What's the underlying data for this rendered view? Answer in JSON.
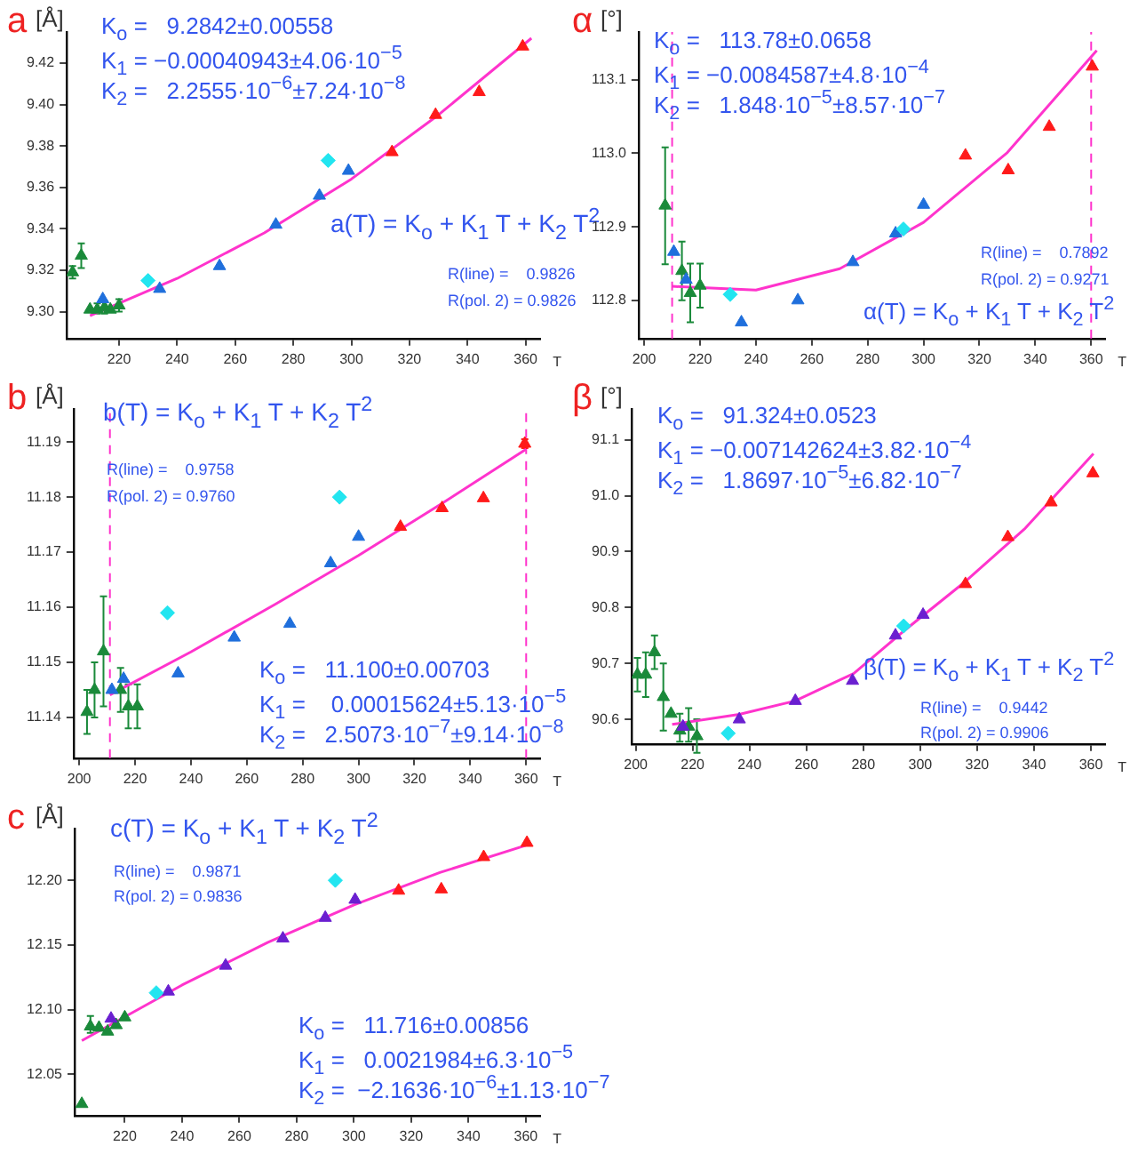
{
  "chart_data": [
    {
      "type": "scatter",
      "title": "a",
      "ylabel": "[Å]",
      "xlabel": "T",
      "xlim": [
        202,
        365
      ],
      "xticks": [
        220,
        240,
        260,
        280,
        300,
        320,
        340,
        360
      ],
      "ylim": [
        9.287,
        9.435
      ],
      "yticks": [
        {
          "value": 9.3,
          "label": "9.30"
        },
        {
          "value": 9.32,
          "label": "9.32"
        },
        {
          "value": 9.34,
          "label": "9.34"
        },
        {
          "value": 9.36,
          "label": "9.36"
        },
        {
          "value": 9.38,
          "label": "9.38"
        },
        {
          "value": 9.4,
          "label": "9.40"
        },
        {
          "value": 9.42,
          "label": "9.42"
        }
      ],
      "annotations": [
        "K$_{o}$ =   9.2842±0.00558",
        "K$_{1}$ = −0.00040943±4.06·10$^{−5}$",
        "K$_{2}$ =   2.2555·10$^{−6}$±7.24·10$^{−8}$",
        "a(T) = K$_{o}$ + K$_{1}$ T + K$_{2}$ T$^{2}$",
        "R(line) =    0.9826",
        "R(pol. 2) = 0.9826"
      ],
      "series": [
        {
          "type": "line",
          "color": "#ff33cc",
          "marker": "none",
          "x": [
            210,
            240,
            270,
            300,
            330,
            362
          ],
          "values": [
            9.298,
            9.316,
            9.338,
            9.364,
            9.395,
            9.432
          ]
        },
        {
          "type": "scatter",
          "color": "#1a8a3a",
          "marker": "triangle",
          "x": [
            204,
            207,
            210,
            212.5,
            215,
            217,
            220
          ],
          "values": [
            9.319,
            9.327,
            9.301,
            9.301,
            9.302,
            9.301,
            9.303
          ],
          "errors": [
            [
              9.316,
              9.322
            ],
            [
              9.321,
              9.333
            ],
            null,
            [
              9.299,
              9.304
            ],
            [
              9.299,
              9.305
            ],
            null,
            [
              9.3,
              9.306
            ]
          ]
        },
        {
          "type": "scatter",
          "color": "#1f6fdc",
          "marker": "triangle",
          "x": [
            214.4,
            234,
            254.6,
            274,
            289,
            299
          ],
          "values": [
            9.306,
            9.311,
            9.322,
            9.342,
            9.356,
            9.368
          ]
        },
        {
          "type": "scatter",
          "color": "#22e5f0",
          "marker": "diamond",
          "x": [
            230,
            292
          ],
          "values": [
            9.315,
            9.373
          ]
        },
        {
          "type": "scatter",
          "color": "#ff1a1a",
          "marker": "triangle",
          "x": [
            314,
            329,
            344,
            359
          ],
          "values": [
            9.377,
            9.395,
            9.406,
            9.428
          ]
        }
      ]
    },
    {
      "type": "scatter",
      "title": "α",
      "ylabel": "[°]",
      "xlabel": "T",
      "xlim": [
        198,
        365
      ],
      "xticks": [
        200,
        220,
        240,
        260,
        280,
        300,
        320,
        340,
        360
      ],
      "ylim": [
        112.748,
        113.165
      ],
      "yticks": [
        112.8,
        112.9,
        {
          "value": 113,
          "label": "113.0"
        },
        113.1
      ],
      "annotations": [
        "K$_{o}$ =   113.78±0.0658",
        "K$_{1}$ = −0.0084587±4.8·10$^{−4}$",
        "K$_{2}$ =   1.848·10$^{−5}$±8.57·10$^{−7}$",
        "R(line) =    0.7892",
        "R(pol. 2) = 0.9271",
        "α(T) = K$_{o}$ + K$_{1}$ T + K$_{2}$ T$^{2}$"
      ],
      "ref_lines": [
        {
          "axis": "x",
          "value": 210,
          "color": "#ff33cc",
          "line_style": "dashed"
        },
        {
          "axis": "x",
          "value": 360,
          "color": "#ff33cc",
          "line_style": "dashed"
        }
      ],
      "series": [
        {
          "type": "line",
          "color": "#ff33cc",
          "marker": "none",
          "x": [
            210,
            240,
            270,
            300,
            330,
            362
          ],
          "values": [
            112.819,
            112.814,
            112.843,
            112.906,
            113.001,
            113.14
          ]
        },
        {
          "type": "scatter",
          "color": "#1a8a3a",
          "marker": "triangle",
          "x": [
            207.5,
            213.5,
            216.5,
            220
          ],
          "values": [
            112.929,
            112.84,
            112.81,
            112.82
          ],
          "errors": [
            [
              112.849,
              113.008
            ],
            [
              112.8,
              112.88
            ],
            [
              112.77,
              112.85
            ],
            [
              112.79,
              112.85
            ]
          ]
        },
        {
          "type": "scatter",
          "color": "#1f6fdc",
          "marker": "triangle",
          "x": [
            210.6,
            215,
            234.8,
            255,
            274.7,
            290,
            300
          ],
          "values": [
            112.866,
            112.828,
            112.77,
            112.8,
            112.852,
            112.891,
            112.93
          ]
        },
        {
          "type": "scatter",
          "color": "#22e5f0",
          "marker": "diamond",
          "x": [
            230.8,
            292.8
          ],
          "values": [
            112.808,
            112.897
          ]
        },
        {
          "type": "scatter",
          "color": "#ff1a1a",
          "marker": "triangle",
          "x": [
            315,
            330.3,
            345,
            360.4
          ],
          "values": [
            112.997,
            112.977,
            113.036,
            113.118
          ]
        }
      ]
    },
    {
      "type": "scatter",
      "title": "b",
      "ylabel": "[Å]",
      "xlabel": "T",
      "xlim": [
        198,
        365
      ],
      "xticks": [
        200,
        220,
        240,
        260,
        280,
        300,
        320,
        340,
        360
      ],
      "ylim": [
        11.1326,
        11.196
      ],
      "yticks": [
        11.14,
        11.15,
        11.16,
        11.17,
        11.18,
        11.19
      ],
      "annotations": [
        "b(T) = K$_{o}$ + K$_{1}$ T + K$_{2}$ T$^{2}$",
        "R(line) =    0.9758",
        "R(pol. 2) = 0.9760",
        "K$_{o}$ =   11.100±0.00703",
        "K$_{1}$ =    0.00015624±5.13·10$^{−5}$",
        "K$_{2}$ =   2.5073·10$^{−7}$±9.14·10$^{−8}$"
      ],
      "ref_lines": [
        {
          "axis": "x",
          "value": 211,
          "color": "#ff33cc",
          "line_style": "dashed"
        },
        {
          "axis": "x",
          "value": 360,
          "color": "#ff33cc",
          "line_style": "dashed"
        }
      ],
      "series": [
        {
          "type": "line",
          "color": "#ff33cc",
          "marker": "none",
          "x": [
            211,
            240,
            270,
            300,
            330,
            360
          ],
          "values": [
            11.1441,
            11.1519,
            11.1605,
            11.1694,
            11.1789,
            11.1887
          ]
        },
        {
          "type": "scatter",
          "color": "#1a8a3a",
          "marker": "triangle",
          "x": [
            202.8,
            205.5,
            208.7,
            214.8,
            217.6,
            220.8
          ],
          "values": [
            11.141,
            11.145,
            11.152,
            11.145,
            11.142,
            11.142
          ],
          "errors": [
            [
              11.137,
              11.145
            ],
            [
              11.14,
              11.15
            ],
            [
              11.142,
              11.162
            ],
            [
              11.141,
              11.149
            ],
            [
              11.138,
              11.146
            ],
            [
              11.138,
              11.146
            ]
          ]
        },
        {
          "type": "scatter",
          "color": "#1f6fdc",
          "marker": "triangle",
          "x": [
            211.7,
            215.9,
            235.4,
            255.5,
            275.4,
            290,
            300
          ],
          "values": [
            11.145,
            11.147,
            11.148,
            11.1545,
            11.157,
            11.168,
            11.1728
          ]
        },
        {
          "type": "scatter",
          "color": "#22e5f0",
          "marker": "diamond",
          "x": [
            231.6,
            293.2
          ],
          "values": [
            11.159,
            11.18
          ]
        },
        {
          "type": "scatter",
          "color": "#ff1a1a",
          "marker": "triangle",
          "x": [
            315,
            329.9,
            344.7,
            359.5
          ],
          "values": [
            11.1746,
            11.178,
            11.1798,
            11.1897
          ],
          "errors": [
            null,
            null,
            null,
            [
              11.1889,
              11.1905
            ]
          ]
        }
      ]
    },
    {
      "type": "scatter",
      "title": "β",
      "ylabel": "[°]",
      "xlabel": "T",
      "xlim": [
        198.6,
        365
      ],
      "xticks": [
        200,
        220,
        240,
        260,
        280,
        300,
        320,
        340,
        360
      ],
      "ylim": [
        90.556,
        91.155
      ],
      "yticks": [
        90.6,
        90.7,
        90.8,
        90.9,
        {
          "value": 91,
          "label": "91.0"
        },
        91.1
      ],
      "annotations": [
        "K$_{o}$ =   91.324±0.0523",
        "K$_{1}$ = −0.007142624±3.82·10$^{−4}$",
        "K$_{2}$ =   1.8697·10$^{−5}$±6.82·10$^{−7}$",
        "β(T) = K$_{o}$ + K$_{1}$ T + K$_{2}$ T$^{2}$",
        "R(line) =    0.9442",
        "R(pol. 2) = 0.9906"
      ],
      "series": [
        {
          "type": "line",
          "color": "#ff33cc",
          "marker": "none",
          "x": [
            212.8,
            236.4,
            256,
            276.6,
            295.2,
            316,
            336.6,
            360.9
          ],
          "values": [
            90.591,
            90.609,
            90.633,
            90.682,
            90.762,
            90.847,
            90.94,
            91.075
          ]
        },
        {
          "type": "scatter",
          "color": "#1a8a3a",
          "marker": "triangle",
          "x": [
            200.6,
            203.5,
            206.6,
            209.7,
            212.4,
            215.5,
            218.6,
            221.5
          ],
          "values": [
            90.68,
            90.68,
            90.72,
            90.64,
            90.61,
            90.58,
            90.587,
            90.57
          ],
          "errors": [
            [
              90.65,
              90.71
            ],
            [
              90.64,
              90.72
            ],
            [
              90.69,
              90.75
            ],
            [
              90.58,
              90.7
            ],
            null,
            [
              90.56,
              90.61
            ],
            [
              90.56,
              90.62
            ],
            [
              90.54,
              90.6
            ]
          ]
        },
        {
          "type": "scatter",
          "color": "#6a1fd0",
          "marker": "triangle",
          "x": [
            216.6,
            236.4,
            256.1,
            276.2,
            291.3,
            301
          ],
          "values": [
            90.587,
            90.6,
            90.633,
            90.669,
            90.75,
            90.787
          ]
        },
        {
          "type": "scatter",
          "color": "#22e5f0",
          "marker": "diamond",
          "x": [
            232.5,
            294.2
          ],
          "values": [
            90.575,
            90.767
          ]
        },
        {
          "type": "scatter",
          "color": "#ff1a1a",
          "marker": "triangle",
          "x": [
            315.9,
            330.8,
            346,
            360.7
          ],
          "values": [
            90.842,
            90.926,
            90.988,
            91.04
          ]
        }
      ]
    },
    {
      "type": "scatter",
      "title": "c",
      "ylabel": "[Å]",
      "xlabel": "T",
      "xlim": [
        202.5,
        365
      ],
      "xticks": [
        220,
        240,
        260,
        280,
        300,
        320,
        340,
        360
      ],
      "ylim": [
        12.018,
        12.24
      ],
      "yticks": [
        {
          "value": 12.05,
          "label": "12.05"
        },
        {
          "value": 12.1,
          "label": "12.10"
        },
        {
          "value": 12.15,
          "label": "12.15"
        },
        {
          "value": 12.2,
          "label": "12.20"
        }
      ],
      "annotations": [
        "c(T) = K$_{o}$ + K$_{1}$ T + K$_{2}$ T$^{2}$",
        "R(line) =    0.9871",
        "R(pol. 2) = 0.9836",
        "K$_{o}$ =   11.716±0.00856",
        "K$_{1}$ =   0.0021984±6.3·10$^{−5}$",
        "K$_{2}$ =  −2.1636·10$^{−6}$±1.13·10$^{−7}$"
      ],
      "series": [
        {
          "type": "line",
          "color": "#ff33cc",
          "marker": "none",
          "x": [
            205,
            240,
            270,
            300,
            330,
            360
          ],
          "values": [
            12.076,
            12.119,
            12.152,
            12.181,
            12.206,
            12.227
          ]
        },
        {
          "type": "scatter",
          "color": "#1a8a3a",
          "marker": "triangle",
          "x": [
            205,
            208,
            211,
            214,
            217,
            220
          ],
          "values": [
            12.027,
            12.087,
            12.086,
            12.083,
            12.088,
            12.094
          ],
          "errors": [
            null,
            [
              12.082,
              12.095
            ],
            null,
            null,
            null,
            null
          ]
        },
        {
          "type": "scatter",
          "color": "#6a1fd0",
          "marker": "triangle",
          "x": [
            215.2,
            235.2,
            255.2,
            275.2,
            290,
            300.4
          ],
          "values": [
            12.093,
            12.114,
            12.134,
            12.155,
            12.171,
            12.185
          ]
        },
        {
          "type": "scatter",
          "color": "#22e5f0",
          "marker": "diamond",
          "x": [
            231,
            293.5
          ],
          "values": [
            12.113,
            12.2
          ]
        },
        {
          "type": "scatter",
          "color": "#ff1a1a",
          "marker": "triangle",
          "x": [
            315.6,
            330.5,
            345.3,
            360.4
          ],
          "values": [
            12.192,
            12.193,
            12.218,
            12.229
          ]
        }
      ]
    }
  ]
}
